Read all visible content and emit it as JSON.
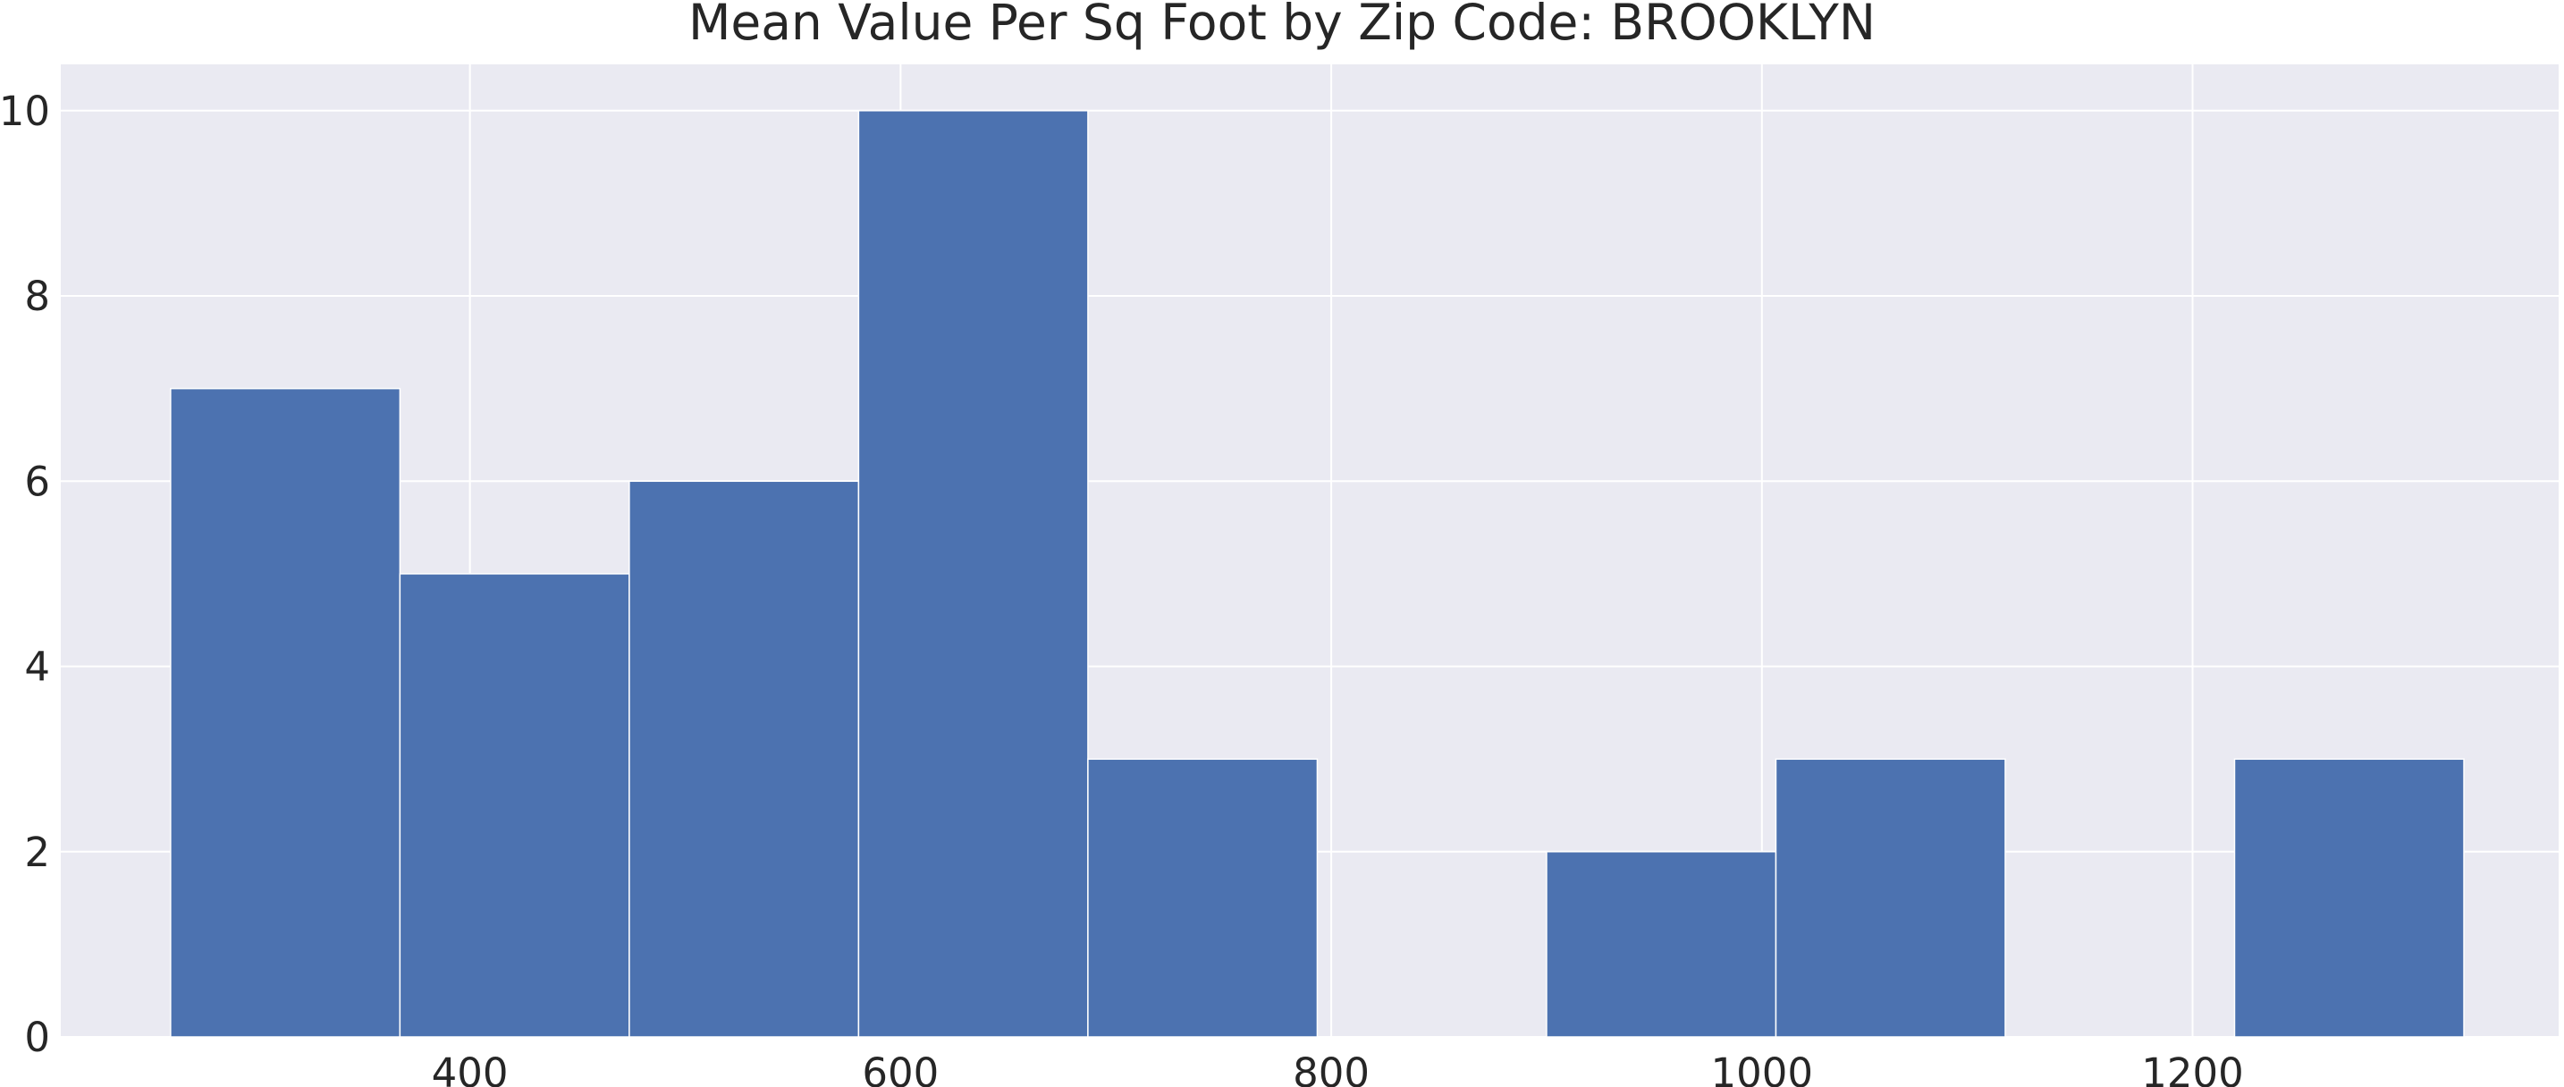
{
  "chart_data": {
    "type": "bar",
    "title": "Mean Value Per Sq Foot by Zip Code: BROOKLYN",
    "xlabel": "",
    "ylabel": "",
    "bin_edges": [
      261,
      367.5,
      474,
      580.5,
      687,
      793.5,
      900,
      1006.5,
      1113,
      1219.5,
      1326
    ],
    "counts": [
      7,
      5,
      6,
      10,
      3,
      0,
      2,
      3,
      0,
      3
    ],
    "xlim": [
      210,
      1370
    ],
    "ylim": [
      0,
      10.5
    ],
    "x_ticks": [
      400,
      600,
      800,
      1000,
      1200
    ],
    "x_tick_labels": [
      "400",
      "600",
      "800",
      "1000",
      "1200"
    ],
    "y_ticks": [
      0,
      2,
      4,
      6,
      8,
      10
    ],
    "y_tick_labels": [
      "0",
      "2",
      "4",
      "6",
      "8",
      "10"
    ],
    "grid": true,
    "colors": {
      "bar": "#4C72B0",
      "plot_background": "#EAEAF2",
      "grid": "#FFFFFF",
      "text": "#262626"
    }
  }
}
